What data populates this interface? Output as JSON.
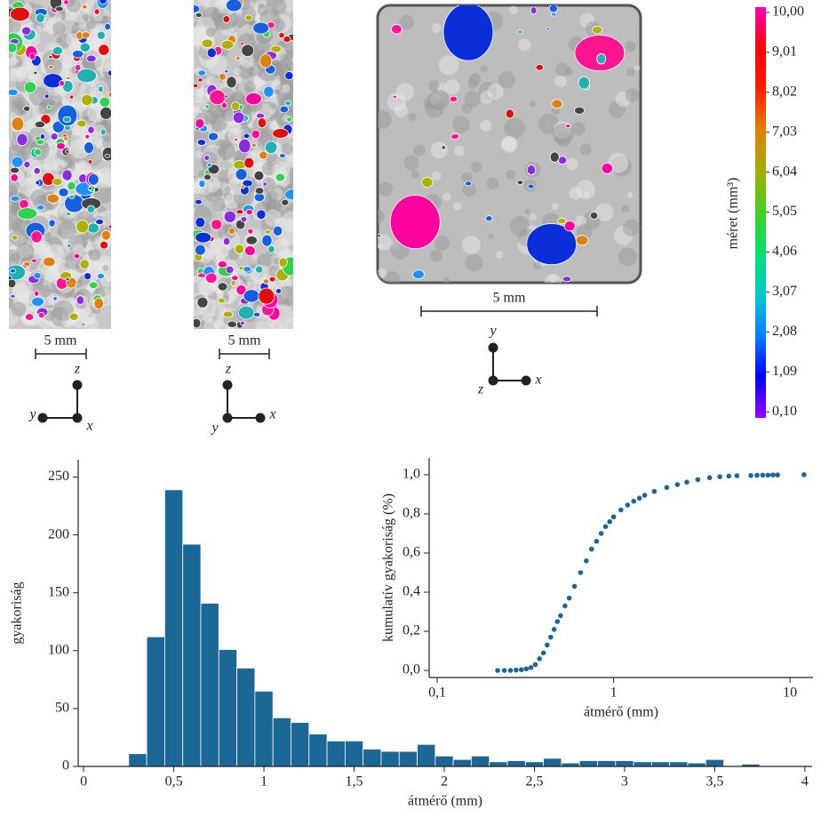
{
  "panels": [
    {
      "scale_label": "5 mm",
      "axis_labels": [
        "z",
        "y",
        "x"
      ]
    },
    {
      "scale_label": "5 mm",
      "axis_labels": [
        "z",
        "x",
        "y"
      ]
    },
    {
      "scale_label": "5 mm",
      "axis_labels": [
        "y",
        "x",
        "z"
      ]
    }
  ],
  "colorbar": {
    "label": "méret (mm³)",
    "lim": [
      -0.05,
      10.13
    ],
    "colors": [
      "#9b00ff",
      "#0000ff",
      "#0080ff",
      "#00c8d0",
      "#00e070",
      "#40d020",
      "#a0b000",
      "#e08000",
      "#ff2000",
      "#ff0000",
      "#ff00b0"
    ],
    "ticks": [
      {
        "value": 0.1,
        "label": "0,10"
      },
      {
        "value": 1.09,
        "label": "1,09"
      },
      {
        "value": 2.08,
        "label": "2,08"
      },
      {
        "value": 3.07,
        "label": "3,07"
      },
      {
        "value": 4.06,
        "label": "4,06"
      },
      {
        "value": 5.05,
        "label": "5,05"
      },
      {
        "value": 6.04,
        "label": "6,04"
      },
      {
        "value": 7.03,
        "label": "7,03"
      },
      {
        "value": 8.02,
        "label": "8,02"
      },
      {
        "value": 9.01,
        "label": "9,01"
      },
      {
        "value": 10,
        "label": "10,00"
      }
    ]
  },
  "chart_data": [
    {
      "type": "histogram",
      "xlabel": "átmérő (mm)",
      "ylabel": "gyakoriság",
      "color": "#1b6896",
      "bins": [
        0.25,
        0.35,
        0.45,
        0.55,
        0.65,
        0.75,
        0.85,
        0.95,
        1.05,
        1.15,
        1.25,
        1.35,
        1.45,
        1.55,
        1.65,
        1.75,
        1.85,
        1.95,
        2.05,
        2.15,
        2.25,
        2.35,
        2.45,
        2.55,
        2.65,
        2.75,
        2.85,
        2.95,
        3.05,
        3.15,
        3.25,
        3.35,
        3.45,
        3.55,
        3.65,
        3.75
      ],
      "values": [
        11,
        112,
        239,
        192,
        141,
        101,
        85,
        65,
        42,
        38,
        28,
        22,
        22,
        15,
        13,
        13,
        19,
        9,
        6,
        9,
        4,
        5,
        4,
        7,
        3,
        5,
        5,
        5,
        4,
        4,
        4,
        3,
        6,
        0,
        2
      ],
      "xlim": [
        -0.03,
        4.04
      ],
      "ylim": [
        0,
        265
      ],
      "xticks": [
        0,
        {
          "value": 0.5,
          "label": "0,5"
        },
        1,
        {
          "value": 1.5,
          "label": "1,5"
        },
        2,
        {
          "value": 2.5,
          "label": "2,5"
        },
        3,
        {
          "value": 3.5,
          "label": "3,5"
        },
        4
      ],
      "yticks": [
        0,
        50,
        100,
        150,
        200,
        250
      ]
    },
    {
      "type": "scatter",
      "log_x": true,
      "xlabel": "átmérő (mm)",
      "ylabel": "kumulatív gyakoriság (%)",
      "color": "#1b6896",
      "x": [
        0.22,
        0.24,
        0.26,
        0.28,
        0.3,
        0.32,
        0.34,
        0.36,
        0.38,
        0.4,
        0.42,
        0.44,
        0.46,
        0.48,
        0.5,
        0.53,
        0.56,
        0.6,
        0.65,
        0.7,
        0.75,
        0.8,
        0.85,
        0.9,
        0.95,
        1.0,
        1.1,
        1.2,
        1.3,
        1.4,
        1.5,
        1.7,
        2.0,
        2.3,
        2.6,
        3.0,
        3.5,
        4.0,
        4.5,
        5.0,
        6.0,
        6.5,
        7.0,
        7.5,
        8.0,
        8.5,
        12.0
      ],
      "values": [
        0,
        0,
        0,
        0.002,
        0.004,
        0.008,
        0.015,
        0.03,
        0.06,
        0.09,
        0.13,
        0.17,
        0.21,
        0.25,
        0.28,
        0.33,
        0.37,
        0.43,
        0.5,
        0.56,
        0.62,
        0.66,
        0.7,
        0.735,
        0.76,
        0.785,
        0.82,
        0.845,
        0.865,
        0.88,
        0.895,
        0.915,
        0.935,
        0.95,
        0.962,
        0.975,
        0.985,
        0.99,
        0.993,
        0.995,
        0.996,
        0.997,
        0.998,
        0.998,
        0.999,
        0.999,
        1.0
      ],
      "xlim": [
        0.09,
        13.5
      ],
      "ylim": [
        -0.036,
        1.086
      ],
      "xticks": [
        {
          "value": 0.1,
          "label": "0,1"
        },
        1,
        10
      ],
      "yticks": [
        {
          "value": 0,
          "label": "0,0"
        },
        {
          "value": 0.2,
          "label": "0,2"
        },
        {
          "value": 0.4,
          "label": "0,4"
        },
        {
          "value": 0.6,
          "label": "0,6"
        },
        {
          "value": 0.8,
          "label": "0,8"
        },
        {
          "value": 1,
          "label": "1,0"
        }
      ]
    }
  ]
}
